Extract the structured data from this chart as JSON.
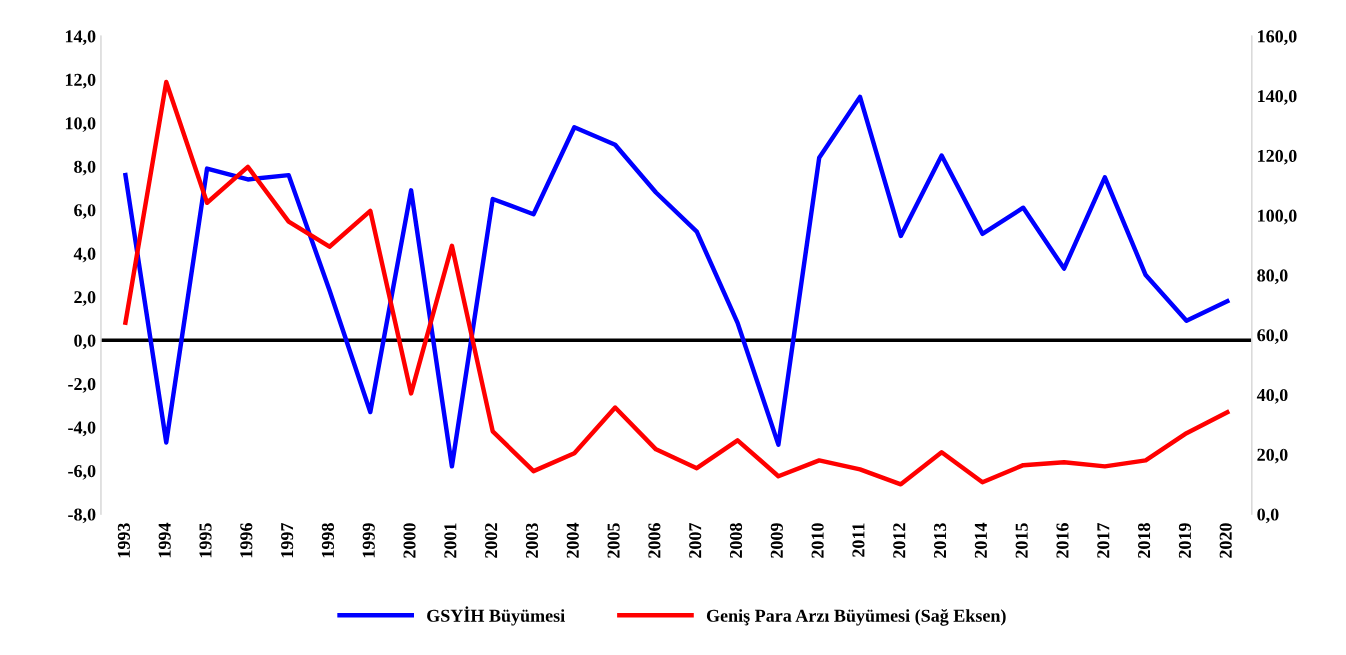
{
  "chart_data": {
    "type": "line",
    "categories": [
      "1993",
      "1994",
      "1995",
      "1996",
      "1997",
      "1998",
      "1999",
      "2000",
      "2001",
      "2002",
      "2003",
      "2004",
      "2005",
      "2006",
      "2007",
      "2008",
      "2009",
      "2010",
      "2011",
      "2012",
      "2013",
      "2014",
      "2015",
      "2016",
      "2017",
      "2018",
      "2019",
      "2020"
    ],
    "series": [
      {
        "name": "GSYİH Büyümesi",
        "color": "#0000ff",
        "values": [
          7.6,
          -4.7,
          7.9,
          7.4,
          7.6,
          2.3,
          -3.3,
          6.9,
          -5.8,
          6.5,
          5.8,
          9.8,
          9.0,
          6.8,
          5.0,
          0.8,
          -4.8,
          8.4,
          11.2,
          4.8,
          8.5,
          4.9,
          6.1,
          3.3,
          7.5,
          3.0,
          0.9,
          1.8
        ]
      },
      {
        "name": "Geniş Para Arzı Büyümesi (Sağ Eksen)",
        "color": "#ff0000",
        "axis": "y2",
        "values": [
          64.1,
          144.6,
          104.2,
          116.2,
          97.9,
          89.5,
          101.5,
          40.4,
          89.8,
          27.7,
          14.4,
          20.4,
          35.7,
          21.7,
          15.4,
          24.7,
          12.7,
          18.0,
          15.0,
          10.0,
          20.7,
          10.7,
          16.4,
          17.4,
          16.0,
          18.0,
          27.1,
          34.1
        ]
      }
    ],
    "ylim": [
      -8,
      14
    ],
    "yticks": [
      {
        "value": -8,
        "label": "-8,0"
      },
      {
        "value": -6,
        "label": "-6,0"
      },
      {
        "value": -4,
        "label": "-4,0"
      },
      {
        "value": -2,
        "label": "-2,0"
      },
      {
        "value": 0,
        "label": "0,0"
      },
      {
        "value": 2,
        "label": "2,0"
      },
      {
        "value": 4,
        "label": "4,0"
      },
      {
        "value": 6,
        "label": "6,0"
      },
      {
        "value": 8,
        "label": "8,0"
      },
      {
        "value": 10,
        "label": "10,0"
      },
      {
        "value": 12,
        "label": "12,0"
      },
      {
        "value": 14,
        "label": "14,0"
      }
    ],
    "y2lim": [
      0,
      160
    ],
    "y2ticks": [
      {
        "value": 0,
        "label": "0,0"
      },
      {
        "value": 20,
        "label": "20,0"
      },
      {
        "value": 40,
        "label": "40,0"
      },
      {
        "value": 60,
        "label": "60,0"
      },
      {
        "value": 80,
        "label": "80,0"
      },
      {
        "value": 100,
        "label": "100,0"
      },
      {
        "value": 120,
        "label": "120,0"
      },
      {
        "value": 140,
        "label": "140,0"
      },
      {
        "value": 160,
        "label": "160,0"
      }
    ],
    "ref_lines": [
      {
        "axis": "y",
        "value": 0,
        "color": "#000000"
      }
    ],
    "grid": false,
    "legend": "bottom",
    "marker": "none",
    "line_style": "solid"
  }
}
